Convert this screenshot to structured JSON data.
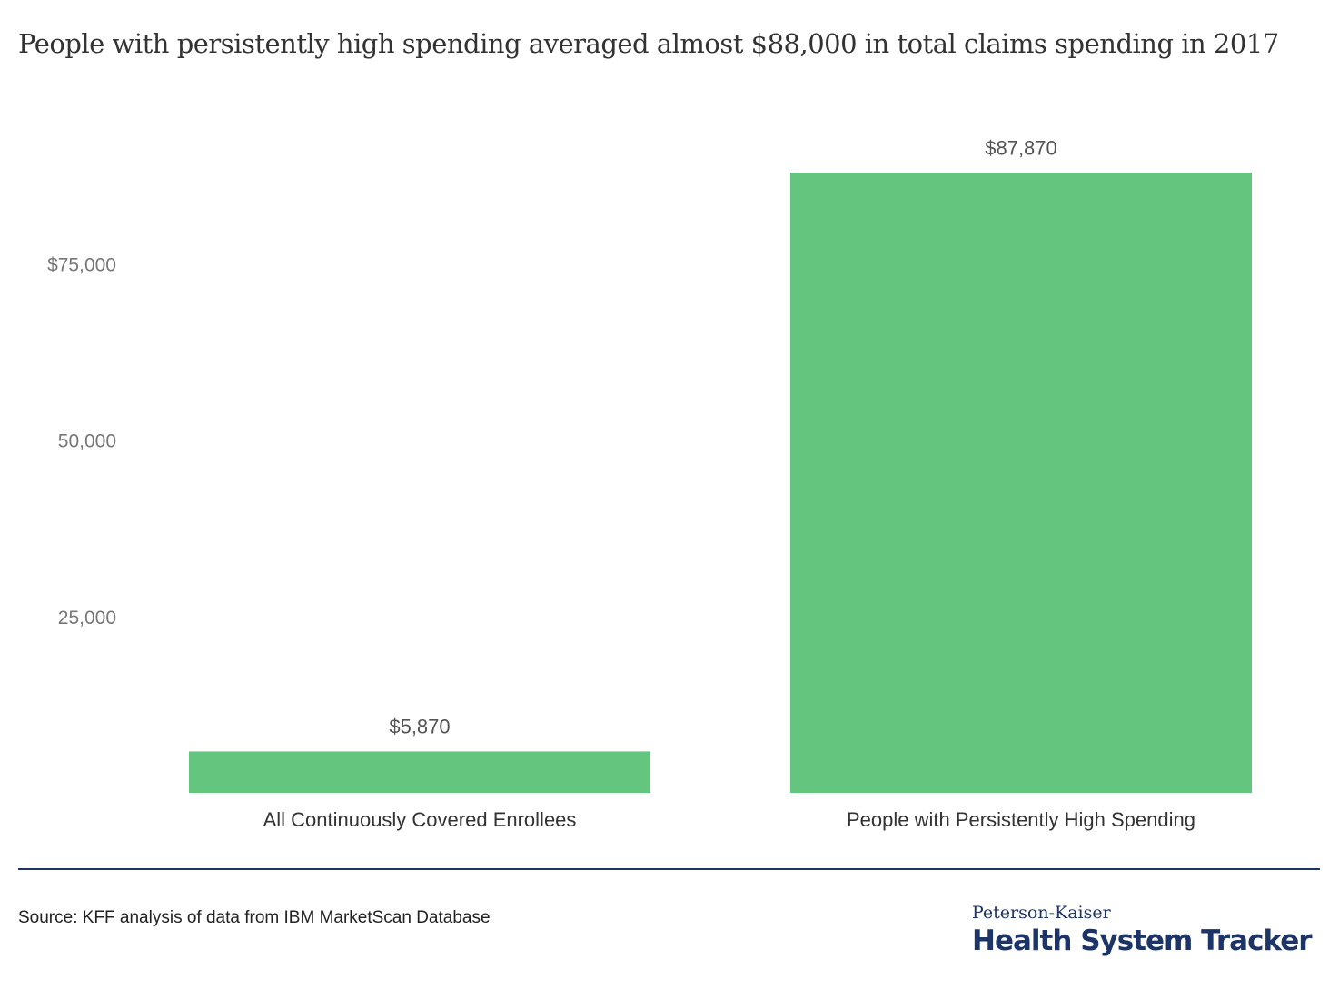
{
  "title": "People with persistently high spending averaged almost $88,000 in total claims spending in 2017",
  "chart_data": {
    "type": "bar",
    "title": "People with persistently high spending averaged almost $88,000 in total claims spending in 2017",
    "categories": [
      "All Continuously Covered Enrollees",
      "People with Persistently High Spending"
    ],
    "values": [
      5870,
      87870
    ],
    "data_labels": [
      "$5,870",
      "$87,870"
    ],
    "ylim": [
      0,
      90000
    ],
    "yticks": [
      25000,
      50000,
      75000
    ],
    "ytick_labels": [
      "25,000",
      "50,000",
      "$75,000"
    ],
    "grid": false,
    "bar_color": "#64c67e",
    "xlabel": "",
    "ylabel": ""
  },
  "source": "Source: KFF analysis of data from IBM MarketScan Database",
  "logo": {
    "top_left": "Peterson",
    "top_hyphen": "-",
    "top_right": "Kaiser",
    "bottom": "Health System Tracker"
  },
  "colors": {
    "rule": "#1c3466",
    "logo": "#1c3466",
    "logo_accent": "#3ca55c"
  }
}
